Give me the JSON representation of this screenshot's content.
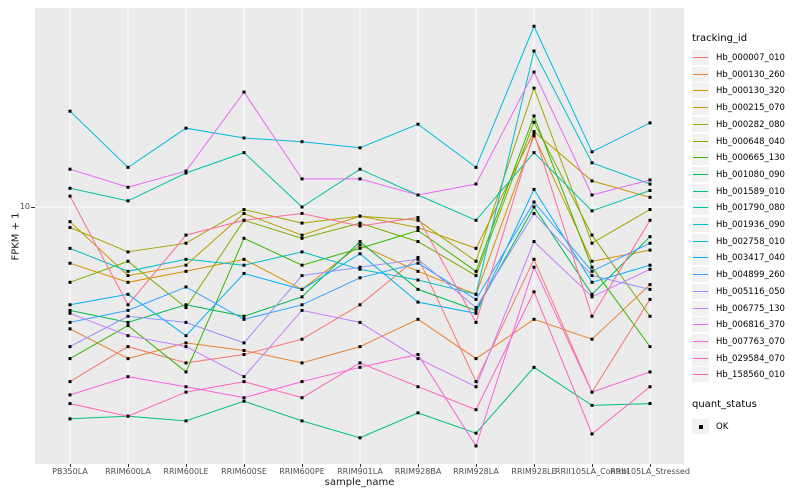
{
  "chart_data": {
    "type": "line",
    "title": "",
    "xlabel": "sample_name",
    "ylabel": "FPKM + 1",
    "y_scale": "log10",
    "y_ticks": [
      10
    ],
    "y_tick_label": "10",
    "ylim": [
      1.3,
      48
    ],
    "grid": "major-only",
    "legend_position": "right",
    "legend_title": "tracking_id",
    "x_categories": [
      "PB350LA",
      "RRIM600LA",
      "RRIM600LE",
      "RRIM600SE",
      "RRIM600PE",
      "RRIM901LA",
      "RRIM928BA",
      "RRIM928LA",
      "RRIM928LE",
      "RRII105LA_Control",
      "RRII105LA_Stressed"
    ],
    "point_color": "#000000",
    "series": [
      {
        "name": "Hb_000007_010",
        "color": "#F8766D",
        "values": [
          2.5,
          3.3,
          2.9,
          3.1,
          3.5,
          4.6,
          6.7,
          2.5,
          6.6,
          2.3,
          4.8
        ]
      },
      {
        "name": "Hb_000130_260",
        "color": "#EA8331",
        "values": [
          3.8,
          3.0,
          3.4,
          3.2,
          2.9,
          3.3,
          4.1,
          3.0,
          4.1,
          3.5,
          5.4
        ]
      },
      {
        "name": "Hb_000130_320",
        "color": "#D89000",
        "values": [
          6.4,
          5.5,
          6.0,
          6.6,
          5.2,
          7.4,
          6.0,
          5.0,
          17.6,
          6.5,
          7.1
        ]
      },
      {
        "name": "Hb_000215_070",
        "color": "#C09B00",
        "values": [
          8.9,
          5.8,
          6.3,
          9.5,
          8.0,
          9.3,
          8.5,
          7.2,
          18.2,
          12.3,
          10.8
        ]
      },
      {
        "name": "Hb_000282_080",
        "color": "#A3A500",
        "values": [
          8.5,
          7.0,
          7.5,
          9.8,
          8.8,
          9.3,
          9.0,
          6.5,
          25.7,
          7.5,
          9.8
        ]
      },
      {
        "name": "Hb_000648_040",
        "color": "#7CAE00",
        "values": [
          5.5,
          6.5,
          4.5,
          9.0,
          7.8,
          8.8,
          7.6,
          5.8,
          19.6,
          8.0,
          4.2
        ]
      },
      {
        "name": "Hb_000665_130",
        "color": "#39B600",
        "values": [
          3.0,
          3.9,
          2.7,
          7.8,
          6.3,
          7.2,
          8.3,
          6.0,
          20.6,
          6.2,
          3.3
        ]
      },
      {
        "name": "Hb_001080_090",
        "color": "#00BB4E",
        "values": [
          4.4,
          4.0,
          4.6,
          4.2,
          4.9,
          7.6,
          5.2,
          4.4,
          10.0,
          5.0,
          7.9
        ]
      },
      {
        "name": "Hb_001589_010",
        "color": "#00BF7D",
        "values": [
          1.86,
          1.9,
          1.83,
          2.14,
          1.83,
          1.6,
          1.95,
          1.66,
          2.8,
          2.07,
          2.1
        ]
      },
      {
        "name": "Hb_001790_080",
        "color": "#00C1A3",
        "values": [
          11.6,
          10.5,
          13.1,
          15.4,
          10.0,
          13.5,
          11.0,
          9.0,
          15.4,
          9.7,
          11.4
        ]
      },
      {
        "name": "Hb_001936_090",
        "color": "#00BFC4",
        "values": [
          7.2,
          6.0,
          6.6,
          6.3,
          7.0,
          6.1,
          5.6,
          5.0,
          34.5,
          14.2,
          12.0
        ]
      },
      {
        "name": "Hb_002758_010",
        "color": "#00BAE0",
        "values": [
          21.4,
          13.7,
          18.7,
          17.3,
          16.8,
          16.0,
          19.3,
          13.7,
          42.0,
          15.5,
          19.5
        ]
      },
      {
        "name": "Hb_003417_040",
        "color": "#00B0F6",
        "values": [
          4.6,
          5.0,
          3.6,
          5.9,
          5.2,
          6.9,
          4.7,
          4.3,
          11.5,
          5.5,
          6.3
        ]
      },
      {
        "name": "Hb_004899_260",
        "color": "#35A2FF",
        "values": [
          4.0,
          4.4,
          5.3,
          4.1,
          4.6,
          5.7,
          6.4,
          4.8,
          10.4,
          6.0,
          7.5
        ]
      },
      {
        "name": "Hb_005116_050",
        "color": "#9590FF",
        "values": [
          3.3,
          4.2,
          4.0,
          3.4,
          5.8,
          6.2,
          6.6,
          4.5,
          9.5,
          5.8,
          5.2
        ]
      },
      {
        "name": "Hb_006775_130",
        "color": "#C77CFF",
        "values": [
          4.3,
          3.6,
          3.3,
          2.6,
          4.4,
          4.0,
          3.0,
          2.4,
          7.6,
          4.9,
          6.1
        ]
      },
      {
        "name": "Hb_006816_370",
        "color": "#E76BF3",
        "values": [
          13.5,
          11.7,
          13.3,
          24.9,
          12.5,
          12.5,
          11.0,
          12.0,
          29.2,
          11.0,
          12.4
        ]
      },
      {
        "name": "Hb_007763_070",
        "color": "#FA62DB",
        "values": [
          2.25,
          2.6,
          2.4,
          2.2,
          2.5,
          2.8,
          3.1,
          1.5,
          6.2,
          2.3,
          2.7
        ]
      },
      {
        "name": "Hb_029584_070",
        "color": "#FF62BC",
        "values": [
          2.1,
          1.9,
          2.3,
          2.5,
          2.2,
          2.9,
          2.4,
          2.0,
          5.1,
          1.65,
          2.4
        ]
      },
      {
        "name": "Hb_158560_010",
        "color": "#FF6A98",
        "values": [
          10.9,
          4.6,
          8.0,
          9.0,
          9.5,
          8.6,
          9.2,
          4.0,
          18.0,
          4.2,
          9.0
        ]
      }
    ],
    "quant_status": {
      "title": "quant_status",
      "value": "OK"
    }
  },
  "style": {
    "panel_bg": "#EBEBEB",
    "grid_color": "#FFFFFF",
    "tick_color": "#333333",
    "tick_text_color": "#4D4D4D"
  }
}
